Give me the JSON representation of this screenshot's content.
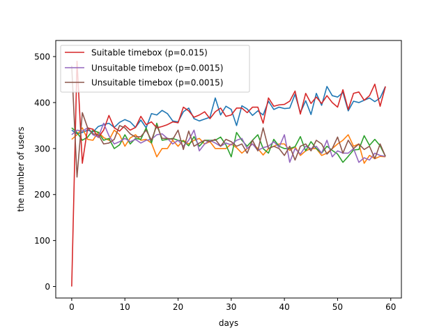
{
  "chart_data": {
    "type": "line",
    "title": "",
    "xlabel": "days",
    "ylabel": "the number of users",
    "xlim": [
      -3,
      62
    ],
    "ylim": [
      -25,
      535
    ],
    "xticks": [
      0,
      10,
      20,
      30,
      40,
      50,
      60
    ],
    "yticks": [
      0,
      100,
      200,
      300,
      400,
      500
    ],
    "grid": false,
    "legend_position": "upper-left",
    "legend": [
      {
        "label": "Suitable timebox (p=0.015)",
        "color": "#d62728"
      },
      {
        "label": "Unsuitable timebox (p=0.0015)",
        "color": "#9467bd"
      },
      {
        "label": "Unsuitable timebox (p=0.0015)",
        "color": "#8c564b"
      }
    ],
    "series": [
      {
        "name": "series-blue",
        "color": "#1f77b4",
        "x": [
          0,
          1,
          2,
          3,
          4,
          5,
          6,
          7,
          8,
          9,
          10,
          11,
          12,
          13,
          14,
          15,
          16,
          17,
          18,
          19,
          20,
          21,
          22,
          23,
          24,
          25,
          26,
          27,
          28,
          29,
          30,
          31,
          32,
          33,
          34,
          35,
          36,
          37,
          38,
          39,
          40,
          41,
          42,
          43,
          44,
          45,
          46,
          47,
          48,
          49,
          50,
          51,
          52,
          53,
          54,
          55,
          56,
          57,
          58,
          59
        ],
        "values": [
          340,
          332,
          335,
          340,
          336,
          348,
          352,
          355,
          346,
          357,
          363,
          358,
          346,
          362,
          345,
          376,
          373,
          383,
          376,
          360,
          358,
          380,
          388,
          365,
          360,
          364,
          368,
          410,
          373,
          392,
          385,
          350,
          393,
          386,
          372,
          382,
          373,
          403,
          385,
          390,
          387,
          388,
          418,
          378,
          404,
          374,
          420,
          394,
          435,
          415,
          412,
          422,
          382,
          403,
          400,
          405,
          410,
          402,
          410,
          435
        ]
      },
      {
        "name": "series-orange",
        "color": "#ff7f0e",
        "x": [
          0,
          1,
          2,
          3,
          4,
          5,
          6,
          7,
          8,
          9,
          10,
          11,
          12,
          13,
          14,
          15,
          16,
          17,
          18,
          19,
          20,
          21,
          22,
          23,
          24,
          25,
          26,
          27,
          28,
          29,
          30,
          31,
          32,
          33,
          34,
          35,
          36,
          37,
          38,
          39,
          40,
          41,
          42,
          43,
          44,
          45,
          46,
          47,
          48,
          49,
          50,
          51,
          52,
          53,
          54,
          55,
          56,
          57,
          58,
          59
        ],
        "values": [
          320,
          330,
          345,
          320,
          318,
          336,
          324,
          318,
          340,
          330,
          305,
          323,
          330,
          318,
          320,
          312,
          282,
          300,
          300,
          318,
          305,
          318,
          310,
          318,
          322,
          310,
          315,
          300,
          300,
          300,
          310,
          302,
          290,
          300,
          310,
          300,
          286,
          300,
          305,
          310,
          310,
          296,
          304,
          285,
          295,
          300,
          300,
          285,
          290,
          300,
          310,
          318,
          330,
          305,
          310,
          268,
          285,
          278,
          283,
          282
        ]
      },
      {
        "name": "series-green",
        "color": "#2ca02c",
        "x": [
          0,
          1,
          2,
          3,
          4,
          5,
          6,
          7,
          8,
          9,
          10,
          11,
          12,
          13,
          14,
          15,
          16,
          17,
          18,
          19,
          20,
          21,
          22,
          23,
          24,
          25,
          26,
          27,
          28,
          29,
          30,
          31,
          32,
          33,
          34,
          35,
          36,
          37,
          38,
          39,
          40,
          41,
          42,
          43,
          44,
          45,
          46,
          47,
          48,
          49,
          50,
          51,
          52,
          53,
          54,
          55,
          56,
          57,
          58,
          59
        ],
        "values": [
          345,
          335,
          318,
          325,
          340,
          335,
          318,
          322,
          300,
          308,
          330,
          310,
          322,
          320,
          345,
          312,
          355,
          318,
          320,
          322,
          318,
          316,
          306,
          326,
          305,
          318,
          318,
          318,
          325,
          308,
          282,
          335,
          318,
          305,
          318,
          330,
          300,
          290,
          320,
          305,
          300,
          300,
          304,
          326,
          295,
          315,
          300,
          290,
          305,
          296,
          288,
          270,
          283,
          297,
          298,
          328,
          307,
          320,
          306,
          283
        ]
      },
      {
        "name": "series-red",
        "color": "#d62728",
        "x": [
          0,
          1,
          2,
          3,
          4,
          5,
          6,
          7,
          8,
          9,
          10,
          11,
          12,
          13,
          14,
          15,
          16,
          17,
          18,
          19,
          20,
          21,
          22,
          23,
          24,
          25,
          26,
          27,
          28,
          29,
          30,
          31,
          32,
          33,
          34,
          35,
          36,
          37,
          38,
          39,
          40,
          41,
          42,
          43,
          44,
          45,
          46,
          47,
          48,
          49,
          50,
          51,
          52,
          53,
          54,
          55,
          56,
          57,
          58,
          59
        ],
        "values": [
          0,
          490,
          268,
          345,
          342,
          324,
          340,
          372,
          345,
          338,
          350,
          340,
          346,
          370,
          352,
          358,
          345,
          348,
          352,
          358,
          356,
          390,
          382,
          368,
          373,
          380,
          365,
          380,
          388,
          370,
          373,
          388,
          388,
          378,
          390,
          390,
          355,
          410,
          392,
          395,
          396,
          403,
          425,
          375,
          420,
          398,
          412,
          398,
          415,
          400,
          390,
          428,
          385,
          420,
          423,
          405,
          415,
          440,
          392,
          435
        ]
      },
      {
        "name": "series-purple",
        "color": "#9467bd",
        "x": [
          0,
          1,
          2,
          3,
          4,
          5,
          6,
          7,
          8,
          9,
          10,
          11,
          12,
          13,
          14,
          15,
          16,
          17,
          18,
          19,
          20,
          21,
          22,
          23,
          24,
          25,
          26,
          27,
          28,
          29,
          30,
          31,
          32,
          33,
          34,
          35,
          36,
          37,
          38,
          39,
          40,
          41,
          42,
          43,
          44,
          45,
          46,
          47,
          48,
          49,
          50,
          51,
          52,
          53,
          54,
          55,
          56,
          57,
          58,
          59
        ],
        "values": [
          330,
          340,
          338,
          345,
          330,
          325,
          355,
          328,
          310,
          315,
          322,
          315,
          320,
          312,
          318,
          320,
          330,
          332,
          322,
          310,
          318,
          305,
          318,
          340,
          295,
          310,
          318,
          312,
          305,
          312,
          308,
          318,
          322,
          300,
          310,
          296,
          302,
          305,
          315,
          303,
          330,
          270,
          300,
          288,
          305,
          300,
          305,
          290,
          318,
          282,
          295,
          290,
          290,
          300,
          270,
          280,
          275,
          290,
          285,
          283
        ]
      },
      {
        "name": "series-brown",
        "color": "#8c564b",
        "x": [
          0,
          1,
          2,
          3,
          4,
          5,
          6,
          7,
          8,
          9,
          10,
          11,
          12,
          13,
          14,
          15,
          16,
          17,
          18,
          19,
          20,
          21,
          22,
          23,
          24,
          25,
          26,
          27,
          28,
          29,
          30,
          31,
          32,
          33,
          34,
          35,
          36,
          37,
          38,
          39,
          40,
          41,
          42,
          43,
          44,
          45,
          46,
          47,
          48,
          49,
          50,
          51,
          52,
          53,
          54,
          55,
          56,
          57,
          58,
          59
        ],
        "values": [
          480,
          238,
          378,
          345,
          332,
          330,
          310,
          312,
          320,
          350,
          345,
          332,
          325,
          326,
          340,
          318,
          350,
          322,
          322,
          320,
          340,
          298,
          338,
          305,
          312,
          318,
          315,
          320,
          305,
          320,
          315,
          305,
          310,
          290,
          318,
          295,
          345,
          300,
          305,
          300,
          285,
          305,
          275,
          305,
          310,
          295,
          318,
          310,
          288,
          300,
          325,
          290,
          318,
          300,
          310,
          298,
          305,
          278,
          310,
          283
        ]
      }
    ]
  }
}
